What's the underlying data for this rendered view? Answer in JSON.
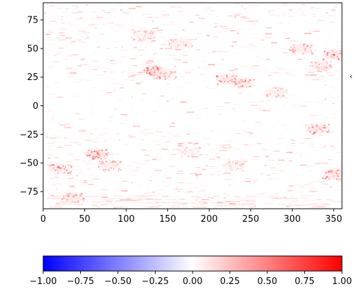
{
  "chart_data": {
    "type": "heatmap",
    "title": "",
    "xlabel": "",
    "ylabel": "",
    "xlim": [
      0,
      360
    ],
    "ylim": [
      -90,
      90
    ],
    "x_ticks": [
      0,
      50,
      100,
      150,
      200,
      250,
      300,
      350
    ],
    "y_ticks": [
      75,
      50,
      25,
      0,
      -25,
      -50,
      -75
    ],
    "x_tick_labels": [
      "0",
      "50",
      "100",
      "150",
      "200",
      "250",
      "300",
      "350"
    ],
    "y_tick_labels": [
      "75",
      "50",
      "25",
      "0",
      "−25",
      "−50",
      "−75"
    ],
    "colormap": "bwr",
    "colors": {
      "low": "#0000ff",
      "mid": "#ffffff",
      "high": "#ff0000"
    },
    "colorbar": {
      "orientation": "horizontal",
      "range": [
        -1.0,
        1.0
      ],
      "ticks": [
        -1.0,
        -0.75,
        -0.5,
        -0.25,
        0.0,
        0.25,
        0.5,
        0.75,
        1.0
      ],
      "tick_labels": [
        "−1.00",
        "−0.75",
        "−0.50",
        "−0.25",
        "0.00",
        "0.25",
        "0.50",
        "0.75",
        "1.00"
      ]
    },
    "hotspots": [
      {
        "lon": 132,
        "lat": 31,
        "value": 0.45
      },
      {
        "lon": 145,
        "lat": 28,
        "value": 0.35
      },
      {
        "lon": 222,
        "lat": 23,
        "value": 0.4
      },
      {
        "lon": 240,
        "lat": 20,
        "value": 0.35
      },
      {
        "lon": 350,
        "lat": 45,
        "value": 0.4
      },
      {
        "lon": 335,
        "lat": 35,
        "value": 0.3
      },
      {
        "lon": 310,
        "lat": 50,
        "value": 0.3
      },
      {
        "lon": 65,
        "lat": -42,
        "value": 0.45
      },
      {
        "lon": 80,
        "lat": -52,
        "value": 0.3
      },
      {
        "lon": 20,
        "lat": -55,
        "value": 0.35
      },
      {
        "lon": 330,
        "lat": -20,
        "value": 0.35
      },
      {
        "lon": 350,
        "lat": -60,
        "value": 0.4
      },
      {
        "lon": 35,
        "lat": -80,
        "value": 0.3
      },
      {
        "lon": 230,
        "lat": -52,
        "value": 0.2
      },
      {
        "lon": 165,
        "lat": 55,
        "value": 0.2
      },
      {
        "lon": 175,
        "lat": -40,
        "value": 0.15
      },
      {
        "lon": 120,
        "lat": 62,
        "value": 0.2
      },
      {
        "lon": 280,
        "lat": 12,
        "value": 0.2
      }
    ]
  }
}
